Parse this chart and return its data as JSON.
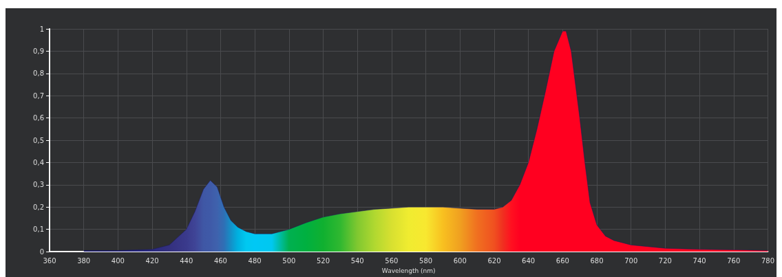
{
  "chart_data": {
    "type": "area",
    "xlabel": "Wavelength (nm)",
    "x": [
      380,
      400,
      420,
      430,
      440,
      445,
      450,
      454,
      458,
      462,
      466,
      470,
      475,
      480,
      490,
      500,
      510,
      520,
      530,
      540,
      550,
      560,
      570,
      580,
      590,
      600,
      610,
      620,
      625,
      630,
      635,
      640,
      645,
      650,
      655,
      660,
      662,
      665,
      670,
      673,
      676,
      680,
      685,
      690,
      700,
      720,
      740,
      760,
      780
    ],
    "series": [
      {
        "values": [
          0.005,
          0.005,
          0.01,
          0.03,
          0.1,
          0.18,
          0.28,
          0.32,
          0.29,
          0.2,
          0.14,
          0.11,
          0.09,
          0.08,
          0.08,
          0.1,
          0.13,
          0.155,
          0.17,
          0.18,
          0.19,
          0.195,
          0.2,
          0.2,
          0.2,
          0.195,
          0.19,
          0.19,
          0.2,
          0.23,
          0.3,
          0.4,
          0.55,
          0.72,
          0.9,
          0.99,
          0.99,
          0.9,
          0.6,
          0.4,
          0.22,
          0.12,
          0.07,
          0.05,
          0.03,
          0.015,
          0.01,
          0.008,
          0.005
        ],
        "colors": [
          "#1a1a6e",
          "#1f1f7a",
          "#2a2a80",
          "#34307f",
          "#3a3a8c",
          "#3f4496",
          "#3f57a5",
          "#3f5aa8",
          "#3f62ad",
          "#2f6fb5",
          "#1490c8",
          "#00b0e0",
          "#00c8f0",
          "#00c8f5",
          "#00c8f0",
          "#00b050",
          "#00b040",
          "#10b030",
          "#30b830",
          "#80c830",
          "#b0d830",
          "#d8e030",
          "#f0ec30",
          "#f8e830",
          "#f8c020",
          "#f0a020",
          "#f07020",
          "#f05020",
          "#f03020",
          "#ff1020",
          "#ff0020",
          "#ff0020",
          "#ff0020",
          "#ff0020",
          "#ff0020",
          "#ff0020",
          "#ff0020",
          "#ff0020",
          "#ff0020",
          "#ff0020",
          "#ff0020",
          "#ff0020",
          "#ff0020",
          "#ff0020",
          "#ff0020",
          "#ff0020",
          "#ff0020",
          "#ff0020",
          "#ff0020"
        ]
      }
    ],
    "xlim": [
      360,
      780
    ],
    "xticks": [
      360,
      380,
      400,
      420,
      440,
      460,
      480,
      500,
      520,
      540,
      560,
      580,
      600,
      620,
      640,
      660,
      680,
      700,
      720,
      740,
      760,
      780
    ],
    "ylim": [
      0,
      1
    ],
    "yticks": [
      0,
      {
        "value": 0.1,
        "label": "0,1"
      },
      {
        "value": 0.2,
        "label": "0,2"
      },
      {
        "value": 0.3,
        "label": "0,3"
      },
      {
        "value": 0.4,
        "label": "0,4"
      },
      {
        "value": 0.5,
        "label": "0,5"
      },
      {
        "value": 0.6,
        "label": "0,6"
      },
      {
        "value": 0.7,
        "label": "0,7"
      },
      {
        "value": 0.8,
        "label": "0,8"
      },
      {
        "value": 0.9,
        "label": "0,9"
      },
      1
    ],
    "grid": true
  }
}
